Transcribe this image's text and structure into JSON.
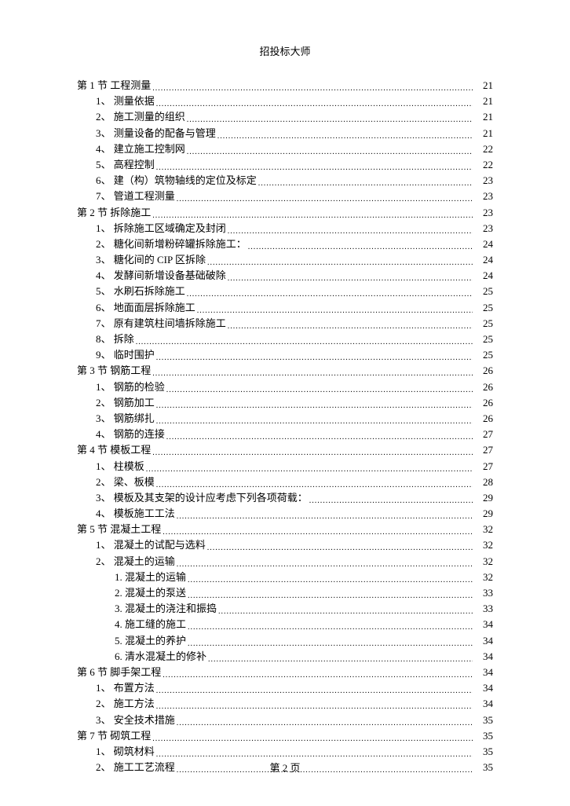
{
  "header": {
    "title": "招投标大师"
  },
  "footer": {
    "text": "第 2 页"
  },
  "toc": {
    "entries": [
      {
        "indent": 0,
        "label": "第 1 节  工程测量",
        "page": "21"
      },
      {
        "indent": 1,
        "label": "1、 测量依据",
        "page": "21"
      },
      {
        "indent": 1,
        "label": "2、 施工测量的组织",
        "page": "21"
      },
      {
        "indent": 1,
        "label": "3、 测量设备的配备与管理",
        "page": "21"
      },
      {
        "indent": 1,
        "label": "4、 建立施工控制网",
        "page": "22"
      },
      {
        "indent": 1,
        "label": "5、 高程控制",
        "page": "22"
      },
      {
        "indent": 1,
        "label": "6、 建（构）筑物轴线的定位及标定",
        "page": "23"
      },
      {
        "indent": 1,
        "label": "7、 管道工程测量",
        "page": "23"
      },
      {
        "indent": 0,
        "label": "第 2 节  拆除施工",
        "page": "23"
      },
      {
        "indent": 1,
        "label": "1、 拆除施工区域确定及封闭",
        "page": "23"
      },
      {
        "indent": 1,
        "label": "2、 糖化间新增粉碎罐拆除施工：",
        "page": "24"
      },
      {
        "indent": 1,
        "label": "3、 糖化间的 CIP 区拆除",
        "page": "24"
      },
      {
        "indent": 1,
        "label": "4、 发酵间新增设备基础破除",
        "page": "24"
      },
      {
        "indent": 1,
        "label": "5、 水刷石拆除施工",
        "page": "25"
      },
      {
        "indent": 1,
        "label": "6、 地面面层拆除施工",
        "page": "25"
      },
      {
        "indent": 1,
        "label": "7、 原有建筑柱间墙拆除施工",
        "page": "25"
      },
      {
        "indent": 1,
        "label": "8、 拆除",
        "page": "25"
      },
      {
        "indent": 1,
        "label": "9、 临时围护",
        "page": "25"
      },
      {
        "indent": 0,
        "label": "第 3 节  钢筋工程",
        "page": "26"
      },
      {
        "indent": 1,
        "label": "1、 钢筋的检验",
        "page": "26"
      },
      {
        "indent": 1,
        "label": "2、 钢筋加工",
        "page": "26"
      },
      {
        "indent": 1,
        "label": "3、 钢筋绑扎",
        "page": "26"
      },
      {
        "indent": 1,
        "label": "4、 钢筋的连接",
        "page": "27"
      },
      {
        "indent": 0,
        "label": "第 4 节  模板工程",
        "page": "27"
      },
      {
        "indent": 1,
        "label": "1、 柱模板",
        "page": "27"
      },
      {
        "indent": 1,
        "label": "2、 梁、板模",
        "page": "28"
      },
      {
        "indent": 1,
        "label": "3、 模板及其支架的设计应考虑下列各项荷载：",
        "page": "29"
      },
      {
        "indent": 1,
        "label": "4、 模板施工工法",
        "page": "29"
      },
      {
        "indent": 0,
        "label": "第 5 节  混凝土工程",
        "page": "32"
      },
      {
        "indent": 1,
        "label": "1、 混凝土的试配与选料",
        "page": "32"
      },
      {
        "indent": 1,
        "label": "2、 混凝土的运输",
        "page": "32"
      },
      {
        "indent": 2,
        "label": "1. 混凝土的运输",
        "page": "32"
      },
      {
        "indent": 2,
        "label": "2. 混凝土的泵送",
        "page": "33"
      },
      {
        "indent": 2,
        "label": "3. 混凝土的浇注和振捣",
        "page": "33"
      },
      {
        "indent": 2,
        "label": "4. 施工缝的施工",
        "page": "34"
      },
      {
        "indent": 2,
        "label": "5. 混凝土的养护",
        "page": "34"
      },
      {
        "indent": 2,
        "label": "6. 清水混凝土的修补",
        "page": "34"
      },
      {
        "indent": 0,
        "label": "第 6 节  脚手架工程",
        "page": "34"
      },
      {
        "indent": 1,
        "label": "1、 布置方法",
        "page": "34"
      },
      {
        "indent": 1,
        "label": "2、 施工方法",
        "page": "34"
      },
      {
        "indent": 1,
        "label": "3、 安全技术措施",
        "page": "35"
      },
      {
        "indent": 0,
        "label": "第 7 节  砌筑工程",
        "page": "35"
      },
      {
        "indent": 1,
        "label": "1、 砌筑材料",
        "page": "35"
      },
      {
        "indent": 1,
        "label": "2、 施工工艺流程",
        "page": "35"
      }
    ]
  }
}
